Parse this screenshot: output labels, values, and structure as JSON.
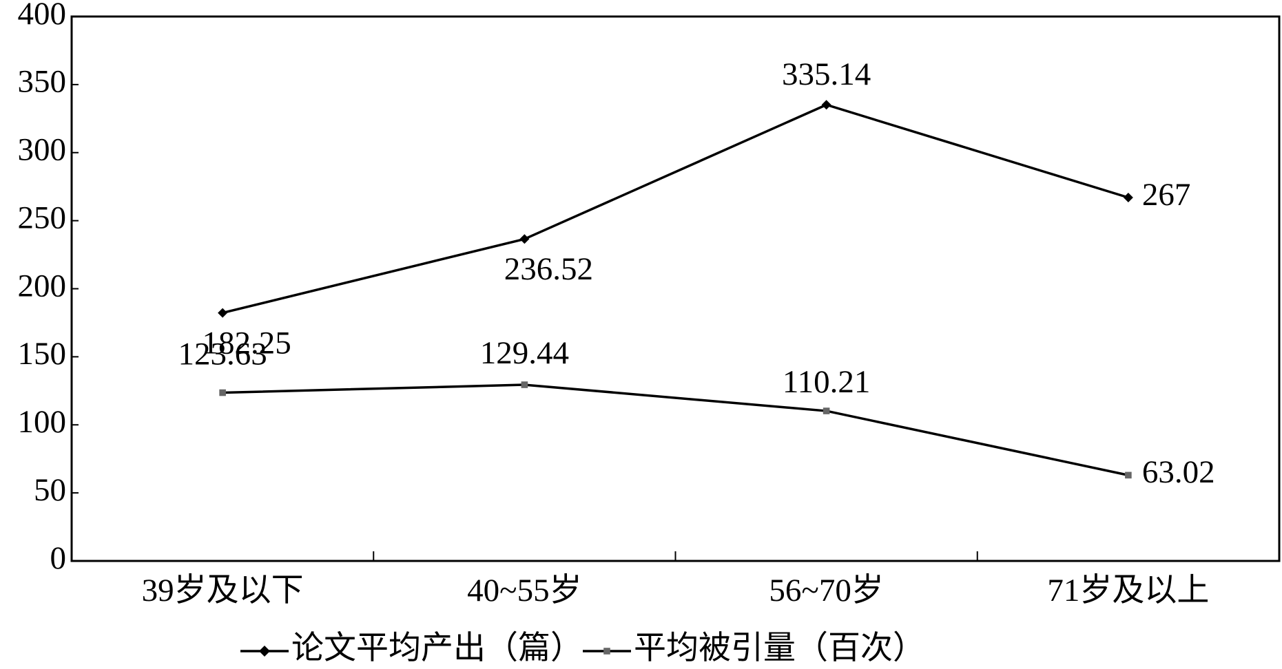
{
  "chart_data": {
    "type": "line",
    "categories": [
      "39岁及以下",
      "40~55岁",
      "56~70岁",
      "71岁及以上"
    ],
    "series": [
      {
        "name": "论文平均产出（篇）",
        "color": "#000000",
        "marker": "diamond",
        "marker_color": "#000000",
        "values": [
          182.25,
          236.52,
          335.14,
          267
        ]
      },
      {
        "name": "平均被引量（百次）",
        "color": "#000000",
        "marker": "square",
        "marker_color": "#666666",
        "values": [
          123.63,
          129.44,
          110.21,
          63.02
        ]
      }
    ],
    "ylim": [
      0,
      400
    ],
    "yticks": [
      0,
      50,
      100,
      150,
      200,
      250,
      300,
      350,
      400
    ],
    "grid": false,
    "legend": "bottom"
  }
}
